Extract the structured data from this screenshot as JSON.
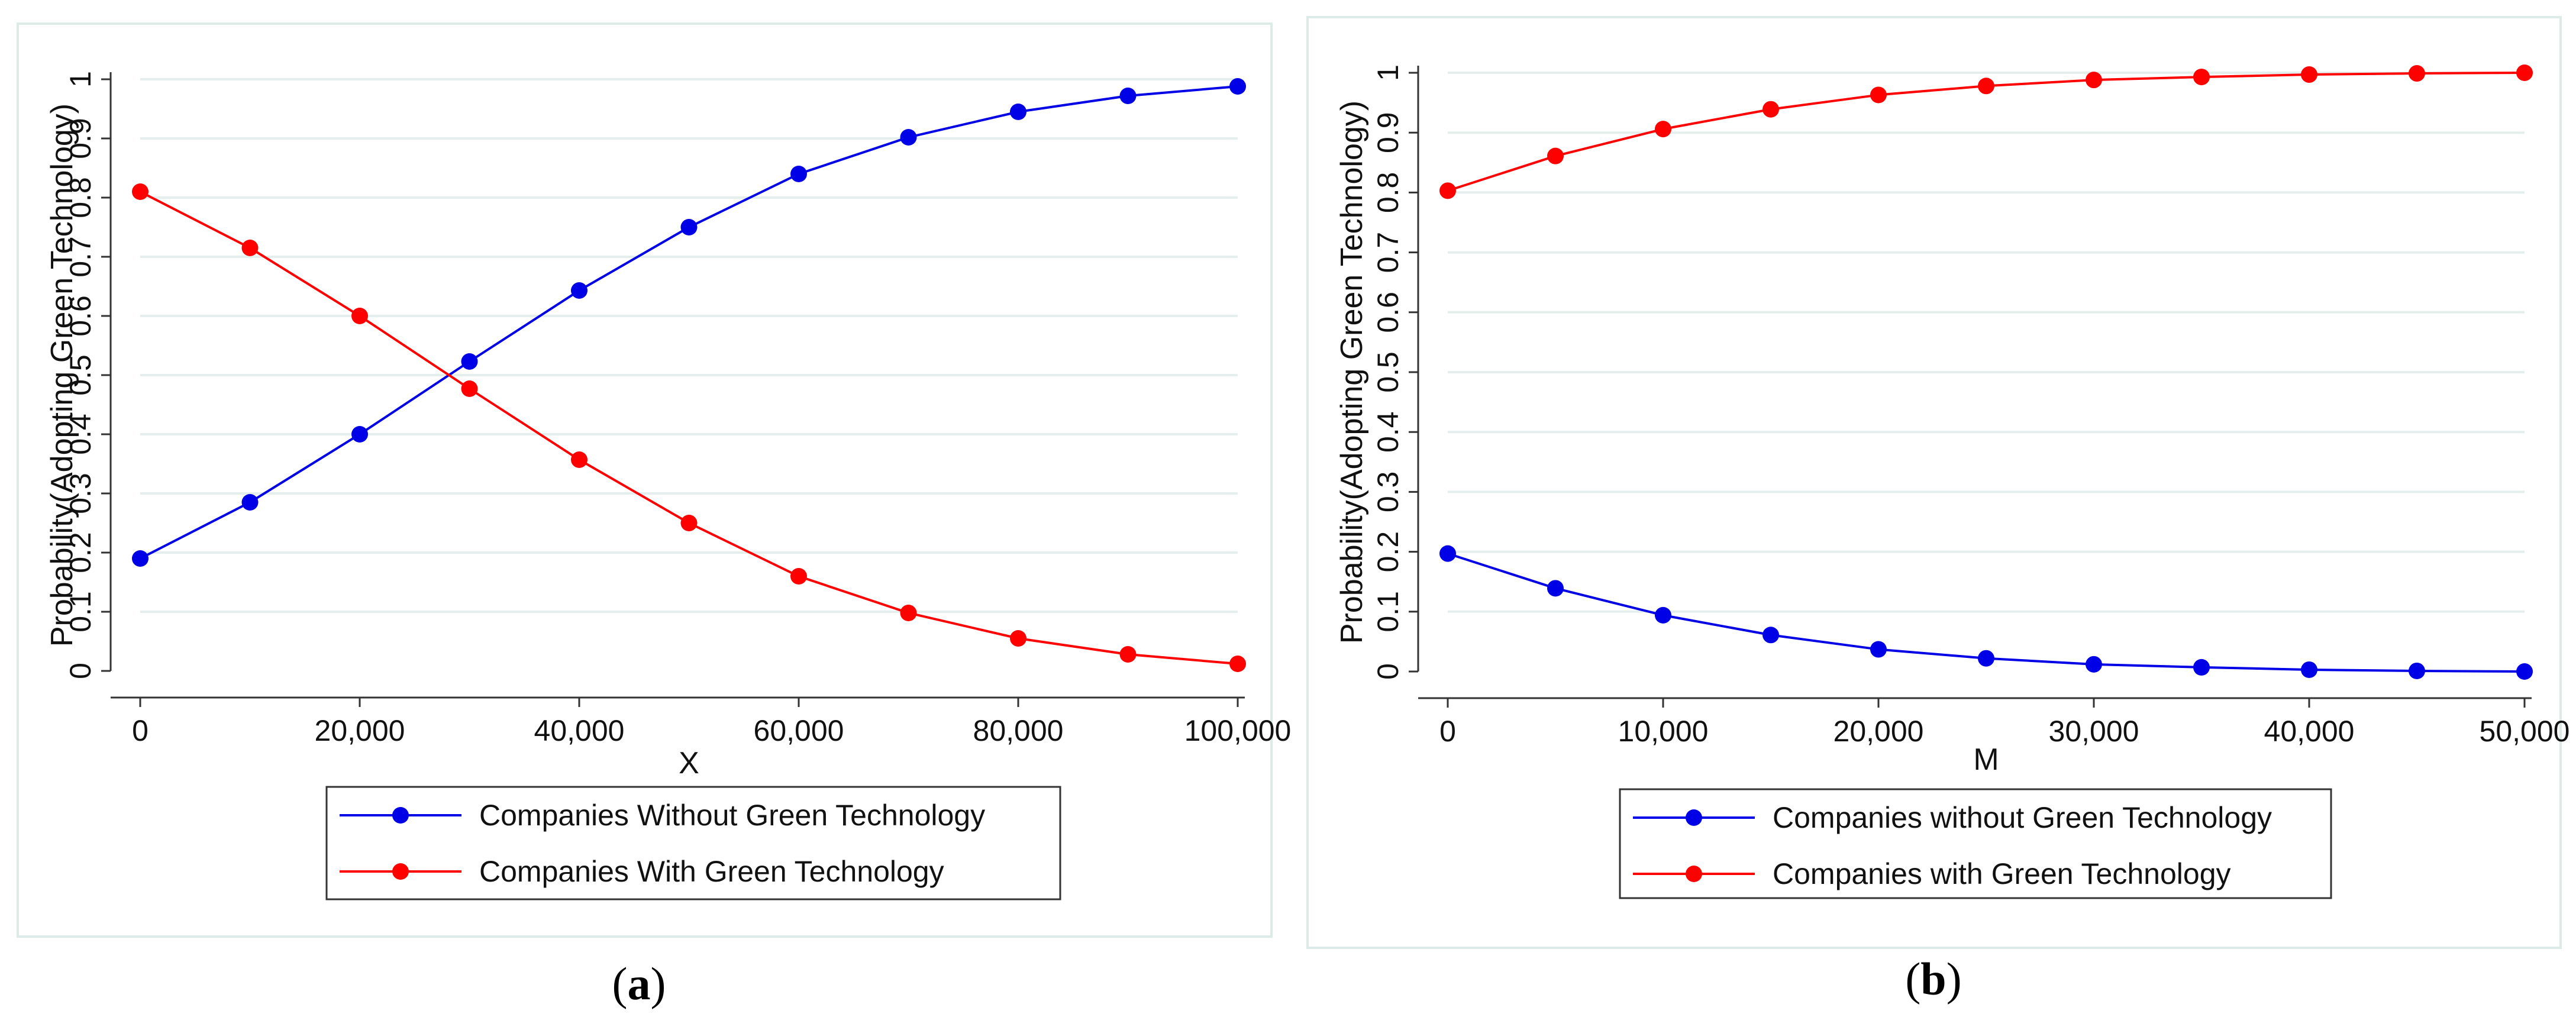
{
  "chart_data": [
    {
      "type": "line",
      "panel": "a",
      "xlabel": "X",
      "ylabel": "Probability(Adopting Green Technology)",
      "xlim": [
        0,
        100000
      ],
      "ylim": [
        0,
        1
      ],
      "x": [
        0,
        10000,
        20000,
        30000,
        40000,
        50000,
        60000,
        70000,
        80000,
        90000,
        100000
      ],
      "x_ticks": [
        0,
        20000,
        40000,
        60000,
        80000,
        100000
      ],
      "x_tick_labels": [
        "0",
        "20,000",
        "40,000",
        "60,000",
        "80,000",
        "100,000"
      ],
      "y_ticks": [
        0,
        0.1,
        0.2,
        0.3,
        0.4,
        0.5,
        0.6,
        0.7,
        0.8,
        0.9,
        1
      ],
      "y_tick_labels": [
        "0",
        "0.1",
        "0.2",
        "0.3",
        "0.4",
        "0.5",
        "0.6",
        "0.7",
        "0.8",
        "0.9",
        "1"
      ],
      "grid": true,
      "legend_position": "bottom",
      "series": [
        {
          "name": "Companies Without Green Technology",
          "color": "#0000e6",
          "values": [
            0.19,
            0.285,
            0.4,
            0.523,
            0.643,
            0.75,
            0.84,
            0.902,
            0.945,
            0.972,
            0.988
          ]
        },
        {
          "name": "Companies With Green Technology",
          "color": "#ff0000",
          "values": [
            0.81,
            0.715,
            0.6,
            0.477,
            0.357,
            0.25,
            0.16,
            0.098,
            0.055,
            0.028,
            0.012
          ]
        }
      ]
    },
    {
      "type": "line",
      "panel": "b",
      "xlabel": "M",
      "ylabel": "Probability(Adopting Green Technology)",
      "xlim": [
        0,
        50000
      ],
      "ylim": [
        0,
        1
      ],
      "x": [
        0,
        5000,
        10000,
        15000,
        20000,
        25000,
        30000,
        35000,
        40000,
        45000,
        50000
      ],
      "x_ticks": [
        0,
        10000,
        20000,
        30000,
        40000,
        50000
      ],
      "x_tick_labels": [
        "0",
        "10,000",
        "20,000",
        "30,000",
        "40,000",
        "50,000"
      ],
      "y_ticks": [
        0,
        0.1,
        0.2,
        0.3,
        0.4,
        0.5,
        0.6,
        0.7,
        0.8,
        0.9,
        1
      ],
      "y_tick_labels": [
        "0",
        "0.1",
        "0.2",
        "0.3",
        "0.4",
        "0.5",
        "0.6",
        "0.7",
        "0.8",
        "0.9",
        "1"
      ],
      "grid": true,
      "legend_position": "bottom",
      "series": [
        {
          "name": "Companies without Green Technology",
          "color": "#0000e6",
          "values": [
            0.197,
            0.139,
            0.094,
            0.061,
            0.037,
            0.022,
            0.012,
            0.007,
            0.003,
            0.001,
            0.0
          ]
        },
        {
          "name": "Companies with Green Technology",
          "color": "#ff0000",
          "values": [
            0.803,
            0.861,
            0.906,
            0.939,
            0.963,
            0.978,
            0.988,
            0.993,
            0.997,
            0.999,
            1.0
          ]
        }
      ]
    }
  ],
  "captions": [
    {
      "open": "(",
      "label": "a",
      "close": ")"
    },
    {
      "open": "(",
      "label": "b",
      "close": ")"
    }
  ]
}
